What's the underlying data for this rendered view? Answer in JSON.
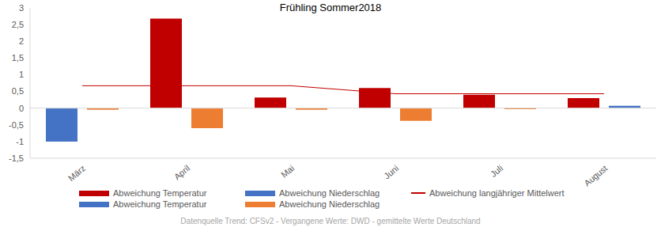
{
  "chart_data": {
    "type": "bar",
    "title": "Frühling Sommer2018",
    "categories": [
      "März",
      "April",
      "Mai",
      "Juni",
      "Juli",
      "August"
    ],
    "series": [
      {
        "name": "Abweichung Temperatur",
        "type": "bar",
        "color": "#c00000",
        "values": [
          null,
          2.68,
          0.32,
          0.6,
          0.4,
          0.3
        ]
      },
      {
        "name": "Abweichung Niederschlag",
        "type": "bar",
        "color": "#4472c4",
        "values": [
          null,
          null,
          null,
          null,
          null,
          0.07
        ]
      },
      {
        "name": "Abweichung langjähriger Mittelwert",
        "type": "line",
        "color": "#c00000",
        "values": [
          0.67,
          0.67,
          0.67,
          0.43,
          0.43,
          0.43
        ]
      },
      {
        "name": "Abweichung Temperatur",
        "type": "bar",
        "color": "#4472c4",
        "values": [
          -1.0,
          null,
          null,
          null,
          null,
          null
        ]
      },
      {
        "name": "Abweichung Niederschlag",
        "type": "bar",
        "color": "#ed7d31",
        "values": [
          -0.05,
          -0.6,
          -0.05,
          -0.38,
          -0.03,
          null
        ]
      }
    ],
    "stacked": true,
    "grid": false,
    "ylim": [
      -1.5,
      3
    ],
    "yticks": [
      {
        "value": -1.5,
        "label": "-1,5"
      },
      -1,
      {
        "value": -0.5,
        "label": "-0,5"
      },
      0,
      {
        "value": 0.5,
        "label": "0,5"
      },
      1,
      {
        "value": 1.5,
        "label": "1,5"
      },
      2,
      {
        "value": 2.5,
        "label": "2,5"
      },
      3
    ],
    "legend": "bottom",
    "annotations": [
      "Datenquelle Trend: CFSv2 - Vergangene Werte: DWD - gemittelte Werte Deutschland"
    ]
  }
}
